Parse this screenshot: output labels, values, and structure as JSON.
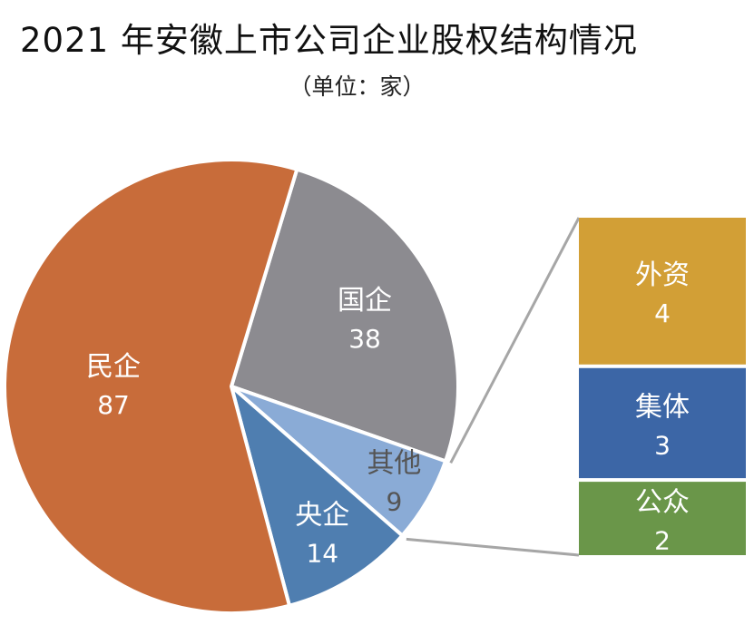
{
  "chart_data": {
    "type": "pie",
    "title": "2021 年安徽上市公司企业股权结构情况",
    "subtitle": "（单位：家）",
    "pie": {
      "slices": [
        {
          "label": "国企",
          "value": 38,
          "color": "#8c8b90"
        },
        {
          "label": "其他",
          "value": 9,
          "color": "#8aabd6"
        },
        {
          "label": "央企",
          "value": 14,
          "color": "#4f7eb0"
        },
        {
          "label": "民企",
          "value": 87,
          "color": "#c86c3a"
        }
      ]
    },
    "breakdown": {
      "of": "其他",
      "items": [
        {
          "label": "外资",
          "value": 4,
          "color": "#d29f36"
        },
        {
          "label": "集体",
          "value": 3,
          "color": "#3c66a6"
        },
        {
          "label": "公众",
          "value": 2,
          "color": "#6a9649"
        }
      ]
    }
  }
}
